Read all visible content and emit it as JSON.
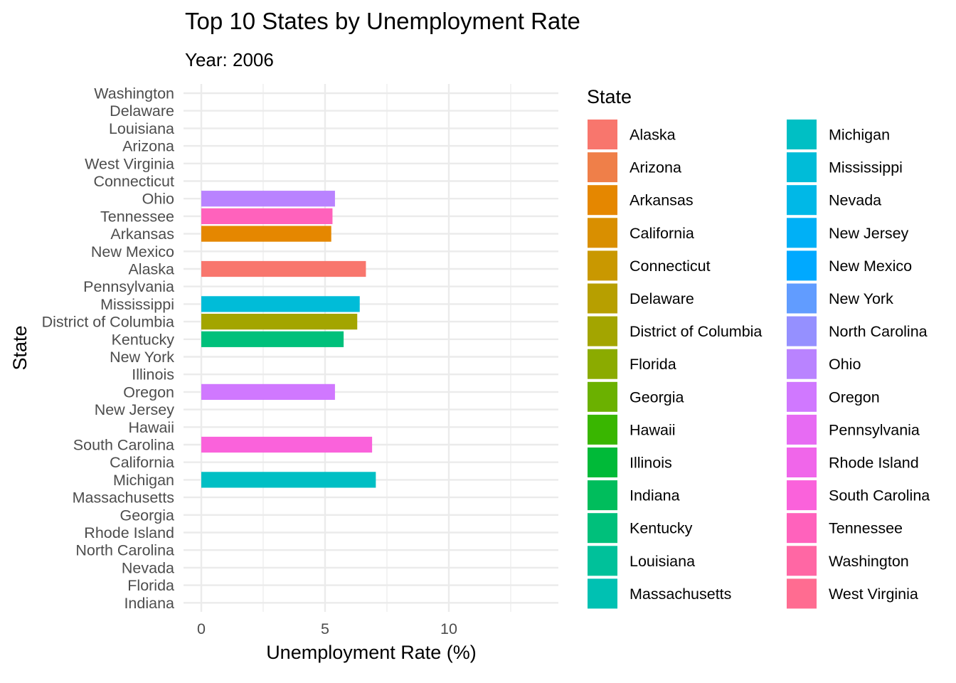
{
  "chart_data": {
    "type": "bar",
    "orientation": "horizontal",
    "title": "Top 10 States by Unemployment Rate",
    "subtitle": "Year: 2006",
    "xlabel": "Unemployment Rate (%)",
    "ylabel": "State",
    "xlim": [
      -0.7,
      14.4
    ],
    "x_ticks": [
      0,
      5,
      10
    ],
    "grid": true,
    "legend_title": "State",
    "legend_position": "right",
    "categories": [
      "Washington",
      "Delaware",
      "Louisiana",
      "Arizona",
      "West Virginia",
      "Connecticut",
      "Ohio",
      "Tennessee",
      "Arkansas",
      "New Mexico",
      "Alaska",
      "Pennsylvania",
      "Mississippi",
      "District of Columbia",
      "Kentucky",
      "New York",
      "Illinois",
      "Oregon",
      "New Jersey",
      "Hawaii",
      "South Carolina",
      "California",
      "Michigan",
      "Massachusetts",
      "Georgia",
      "Rhode Island",
      "North Carolina",
      "Nevada",
      "Florida",
      "Indiana"
    ],
    "bars": [
      {
        "state": "Ohio",
        "value": 5.4
      },
      {
        "state": "Tennessee",
        "value": 5.3
      },
      {
        "state": "Arkansas",
        "value": 5.25
      },
      {
        "state": "Alaska",
        "value": 6.65
      },
      {
        "state": "Mississippi",
        "value": 6.4
      },
      {
        "state": "District of Columbia",
        "value": 6.3
      },
      {
        "state": "Kentucky",
        "value": 5.75
      },
      {
        "state": "Oregon",
        "value": 5.4
      },
      {
        "state": "South Carolina",
        "value": 6.9
      },
      {
        "state": "Michigan",
        "value": 7.05
      }
    ],
    "legend": [
      {
        "label": "Alaska",
        "color": "#F8766D"
      },
      {
        "label": "Arizona",
        "color": "#EF7F49"
      },
      {
        "label": "Arkansas",
        "color": "#E58700"
      },
      {
        "label": "California",
        "color": "#D98F00"
      },
      {
        "label": "Connecticut",
        "color": "#C99800"
      },
      {
        "label": "Delaware",
        "color": "#B79F00"
      },
      {
        "label": "District of Columbia",
        "color": "#A3A500"
      },
      {
        "label": "Florida",
        "color": "#8BAB00"
      },
      {
        "label": "Georgia",
        "color": "#6BB100"
      },
      {
        "label": "Hawaii",
        "color": "#39B600"
      },
      {
        "label": "Illinois",
        "color": "#00BA38"
      },
      {
        "label": "Indiana",
        "color": "#00BD5C"
      },
      {
        "label": "Kentucky",
        "color": "#00C07B"
      },
      {
        "label": "Louisiana",
        "color": "#00C19A"
      },
      {
        "label": "Massachusetts",
        "color": "#00C1B2"
      },
      {
        "label": "Michigan",
        "color": "#00BFC4"
      },
      {
        "label": "Mississippi",
        "color": "#00BCD8"
      },
      {
        "label": "Nevada",
        "color": "#00B8E7"
      },
      {
        "label": "New Jersey",
        "color": "#00B0F6"
      },
      {
        "label": "New Mexico",
        "color": "#00A9FF"
      },
      {
        "label": "New York",
        "color": "#619CFF"
      },
      {
        "label": "North Carolina",
        "color": "#9590FF"
      },
      {
        "label": "Ohio",
        "color": "#B983FF"
      },
      {
        "label": "Oregon",
        "color": "#D078FF"
      },
      {
        "label": "Pennsylvania",
        "color": "#E76BF3"
      },
      {
        "label": "Rhode Island",
        "color": "#F066EA"
      },
      {
        "label": "South Carolina",
        "color": "#FA62DB"
      },
      {
        "label": "Tennessee",
        "color": "#FF62BC"
      },
      {
        "label": "Washington",
        "color": "#FF67A4"
      },
      {
        "label": "West Virginia",
        "color": "#FF6C91"
      }
    ]
  }
}
